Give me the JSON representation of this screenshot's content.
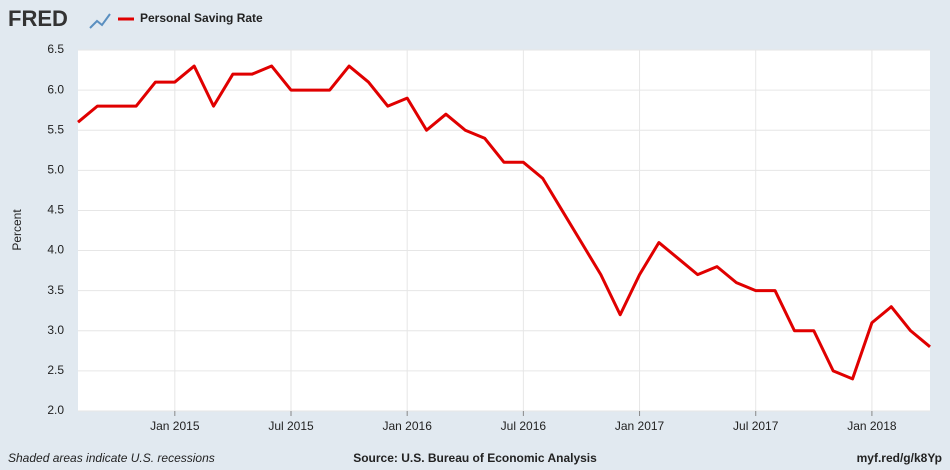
{
  "brand": "FRED",
  "chart_data": {
    "type": "line",
    "x": [
      "2014-08",
      "2014-09",
      "2014-10",
      "2014-11",
      "2014-12",
      "2015-01",
      "2015-02",
      "2015-03",
      "2015-04",
      "2015-05",
      "2015-06",
      "2015-07",
      "2015-08",
      "2015-09",
      "2015-10",
      "2015-11",
      "2015-12",
      "2016-01",
      "2016-02",
      "2016-03",
      "2016-04",
      "2016-05",
      "2016-06",
      "2016-07",
      "2016-08",
      "2016-09",
      "2016-10",
      "2016-11",
      "2016-12",
      "2017-01",
      "2017-02",
      "2017-03",
      "2017-04",
      "2017-05",
      "2017-06",
      "2017-07",
      "2017-08",
      "2017-09",
      "2017-10",
      "2017-11",
      "2017-12",
      "2018-01",
      "2018-02",
      "2018-03",
      "2018-04"
    ],
    "series": [
      {
        "name": "Personal Saving Rate",
        "color": "#e00000",
        "values": [
          5.6,
          5.8,
          5.8,
          5.8,
          6.1,
          6.1,
          6.3,
          5.8,
          6.2,
          6.2,
          6.3,
          6.0,
          6.0,
          6.0,
          6.3,
          6.1,
          5.8,
          5.9,
          5.5,
          5.7,
          5.5,
          5.4,
          5.1,
          5.1,
          4.9,
          4.5,
          4.1,
          3.7,
          3.2,
          3.7,
          4.1,
          3.9,
          3.7,
          3.8,
          3.6,
          3.5,
          3.5,
          3.0,
          3.0,
          2.5,
          2.4,
          3.1,
          3.3,
          3.0,
          2.8
        ]
      }
    ],
    "xlim": [
      "2014-08",
      "2018-04"
    ],
    "xticks": [
      {
        "value": "2015-01",
        "label": "Jan 2015"
      },
      {
        "value": "2015-07",
        "label": "Jul 2015"
      },
      {
        "value": "2016-01",
        "label": "Jan 2016"
      },
      {
        "value": "2016-07",
        "label": "Jul 2016"
      },
      {
        "value": "2017-01",
        "label": "Jan 2017"
      },
      {
        "value": "2017-07",
        "label": "Jul 2017"
      },
      {
        "value": "2018-01",
        "label": "Jan 2018"
      }
    ],
    "ylim": [
      2,
      6.5
    ],
    "yticks": [
      {
        "value": 2,
        "label": "2.0"
      },
      {
        "value": 2.5,
        "label": "2.5"
      },
      {
        "value": 3,
        "label": "3.0"
      },
      {
        "value": 3.5,
        "label": "3.5"
      },
      {
        "value": 4,
        "label": "4.0"
      },
      {
        "value": 4.5,
        "label": "4.5"
      },
      {
        "value": 5,
        "label": "5.0"
      },
      {
        "value": 5.5,
        "label": "5.5"
      },
      {
        "value": 6,
        "label": "6.0"
      },
      {
        "value": 6.5,
        "label": "6.5"
      }
    ],
    "ylabel": "Percent",
    "grid": true
  },
  "footer": {
    "left": "Shaded areas indicate U.S. recessions",
    "center": "Source: U.S. Bureau of Economic Analysis",
    "right": "myf.red/g/k8Yp"
  }
}
